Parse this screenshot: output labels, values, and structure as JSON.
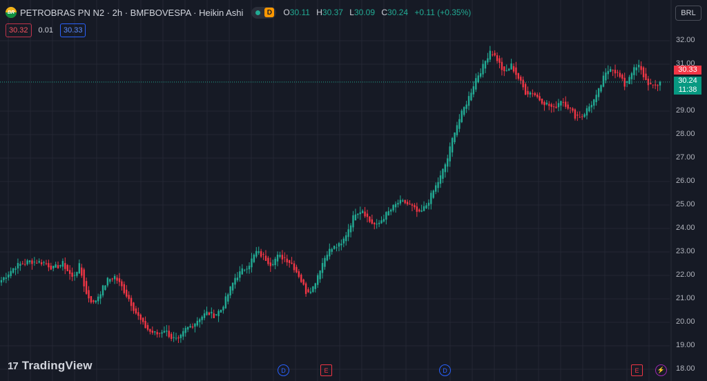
{
  "header": {
    "logo_text": "BR",
    "title": "PETROBRAS PN N2 · 2h · BMFBOVESPA · Heikin Ashi",
    "delay_badge": "D",
    "ohlc": {
      "o_label": "O",
      "o": "30.11",
      "h_label": "H",
      "h": "30.37",
      "l_label": "L",
      "l": "30.09",
      "c_label": "C",
      "c": "30.24",
      "change": "+0.11 (+0.35%)"
    }
  },
  "trade": {
    "sell": "30.32",
    "spread": "0.01",
    "buy": "30.33"
  },
  "currency": "BRL",
  "price_axis": {
    "labels": [
      "32.00",
      "31.00",
      "29.00",
      "28.00",
      "27.00",
      "26.00",
      "25.00",
      "24.00",
      "23.00",
      "22.00",
      "21.00",
      "20.00",
      "19.00",
      "18.00"
    ],
    "tag_ask": "30.33",
    "tag_last": "30.24",
    "tag_timer": "11:38"
  },
  "brand": {
    "logo_glyph": "17",
    "name": "TradingView"
  },
  "markers": [
    {
      "type": "dividend",
      "text": "D"
    },
    {
      "type": "earnings",
      "text": "E"
    },
    {
      "type": "dividend",
      "text": "D"
    },
    {
      "type": "earnings",
      "text": "E"
    },
    {
      "type": "split",
      "text": "⚡"
    }
  ],
  "colors": {
    "background": "#161a25",
    "up": "#22ab94",
    "down": "#f23645",
    "grid": "#242733",
    "accent": "#2962ff"
  },
  "chart_data": {
    "type": "candlestick",
    "style": "Heikin Ashi",
    "symbol": "PETROBRAS PN N2",
    "interval": "2h",
    "exchange": "BMFBOVESPA",
    "ylim": [
      18,
      32.4
    ],
    "y_ticks": [
      18,
      19,
      20,
      21,
      22,
      23,
      24,
      25,
      26,
      27,
      28,
      29,
      31,
      32
    ],
    "last_price": 30.24,
    "grid": true,
    "close_path": [
      [
        0,
        21.8
      ],
      [
        6,
        22.4
      ],
      [
        12,
        22.6
      ],
      [
        18,
        22.55
      ],
      [
        22,
        22.3
      ],
      [
        26,
        22.5
      ],
      [
        30,
        21.9
      ],
      [
        33,
        22.4
      ],
      [
        36,
        21.2
      ],
      [
        39,
        20.8
      ],
      [
        42,
        21.3
      ],
      [
        45,
        21.8
      ],
      [
        48,
        21.95
      ],
      [
        51,
        21.5
      ],
      [
        54,
        21.0
      ],
      [
        57,
        20.4
      ],
      [
        60,
        19.9
      ],
      [
        63,
        19.6
      ],
      [
        66,
        19.5
      ],
      [
        69,
        19.7
      ],
      [
        72,
        19.35
      ],
      [
        75,
        19.2
      ],
      [
        78,
        19.7
      ],
      [
        81,
        19.9
      ],
      [
        84,
        20.2
      ],
      [
        87,
        20.4
      ],
      [
        90,
        20.3
      ],
      [
        93,
        20.55
      ],
      [
        96,
        21.2
      ],
      [
        99,
        21.9
      ],
      [
        102,
        22.2
      ],
      [
        105,
        22.5
      ],
      [
        108,
        23.0
      ],
      [
        111,
        22.8
      ],
      [
        114,
        22.5
      ],
      [
        117,
        22.8
      ],
      [
        120,
        22.75
      ],
      [
        123,
        22.5
      ],
      [
        126,
        22.0
      ],
      [
        129,
        21.3
      ],
      [
        132,
        21.5
      ],
      [
        135,
        22.3
      ],
      [
        138,
        23.0
      ],
      [
        141,
        23.2
      ],
      [
        144,
        23.3
      ],
      [
        147,
        24.0
      ],
      [
        150,
        24.7
      ],
      [
        153,
        24.8
      ],
      [
        156,
        24.3
      ],
      [
        159,
        24.1
      ],
      [
        162,
        24.5
      ],
      [
        165,
        24.8
      ],
      [
        168,
        25.1
      ],
      [
        171,
        25.1
      ],
      [
        174,
        24.9
      ],
      [
        177,
        24.6
      ],
      [
        180,
        25.0
      ],
      [
        183,
        25.6
      ],
      [
        186,
        26.2
      ],
      [
        189,
        27.0
      ],
      [
        192,
        28.2
      ],
      [
        195,
        28.9
      ],
      [
        198,
        29.6
      ],
      [
        201,
        30.4
      ],
      [
        204,
        30.9
      ],
      [
        207,
        31.6
      ],
      [
        210,
        31.2
      ],
      [
        213,
        30.6
      ],
      [
        216,
        30.95
      ],
      [
        219,
        30.4
      ],
      [
        222,
        29.8
      ],
      [
        225,
        29.8
      ],
      [
        228,
        29.5
      ],
      [
        231,
        29.3
      ],
      [
        234,
        29.1
      ],
      [
        237,
        29.5
      ],
      [
        240,
        29.2
      ],
      [
        243,
        28.8
      ],
      [
        246,
        28.8
      ],
      [
        249,
        29.2
      ],
      [
        252,
        29.6
      ],
      [
        255,
        30.4
      ],
      [
        258,
        30.9
      ],
      [
        261,
        30.6
      ],
      [
        264,
        30.1
      ],
      [
        267,
        30.7
      ],
      [
        270,
        30.9
      ],
      [
        273,
        30.3
      ],
      [
        276,
        30.0
      ],
      [
        279,
        30.2
      ]
    ]
  }
}
